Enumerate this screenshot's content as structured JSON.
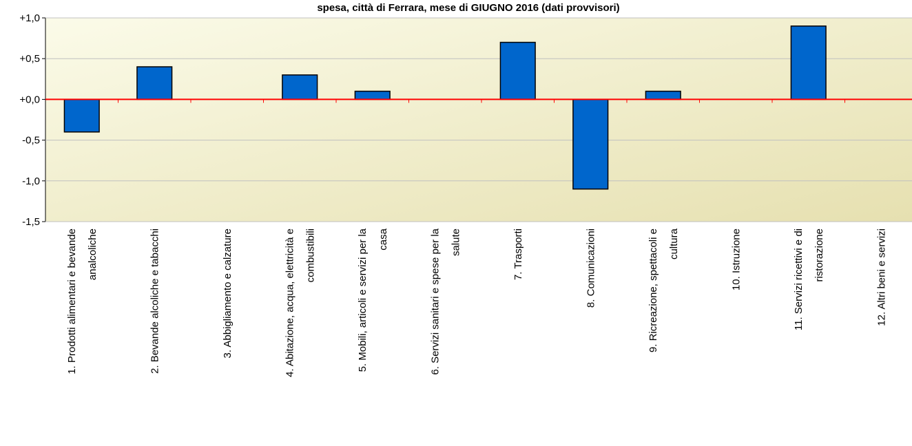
{
  "chart_data": {
    "type": "bar",
    "title": "spesa, città di Ferrara, mese di GIUGNO 2016 (dati provvisori)",
    "xlabel": "",
    "ylabel": "",
    "ylim": [
      -1.5,
      1.0
    ],
    "yticks": [
      "+1,0",
      "+0,5",
      "+0,0",
      "-0,5",
      "-1,0",
      "-1,5"
    ],
    "ytick_values": [
      1.0,
      0.5,
      0.0,
      -0.5,
      -1.0,
      -1.5
    ],
    "grid": true,
    "categories": [
      [
        "1. Prodotti alimentari e bevande",
        "analcoliche"
      ],
      [
        "2. Bevande alcoliche e tabacchi"
      ],
      [
        "3. Abbigliamento e calzature"
      ],
      [
        "4. Abitazione, acqua, elettricità e",
        "combustibili"
      ],
      [
        "5. Mobili, articoli e servizi per la",
        "casa"
      ],
      [
        "6. Servizi sanitari e spese per la",
        "salute"
      ],
      [
        "7. Trasporti"
      ],
      [
        "8. Comunicazioni"
      ],
      [
        "9. Ricreazione, spettacoli e",
        "cultura"
      ],
      [
        "10. Istruzione"
      ],
      [
        "11. Servizi ricettivi e di",
        "ristorazione"
      ],
      [
        "12. Altri beni e servizi"
      ]
    ],
    "values": [
      -0.4,
      0.4,
      0.0,
      0.3,
      0.1,
      0.0,
      0.7,
      -1.1,
      0.1,
      0.0,
      0.9,
      0.0
    ],
    "colors": {
      "bar": "#0066cc",
      "bar_stroke": "#000000",
      "zero_line": "#ff0000",
      "grid": "#c0c0c0",
      "plot_bg_top": "#fbfbe9",
      "plot_bg_bottom": "#e6e0b0"
    }
  }
}
